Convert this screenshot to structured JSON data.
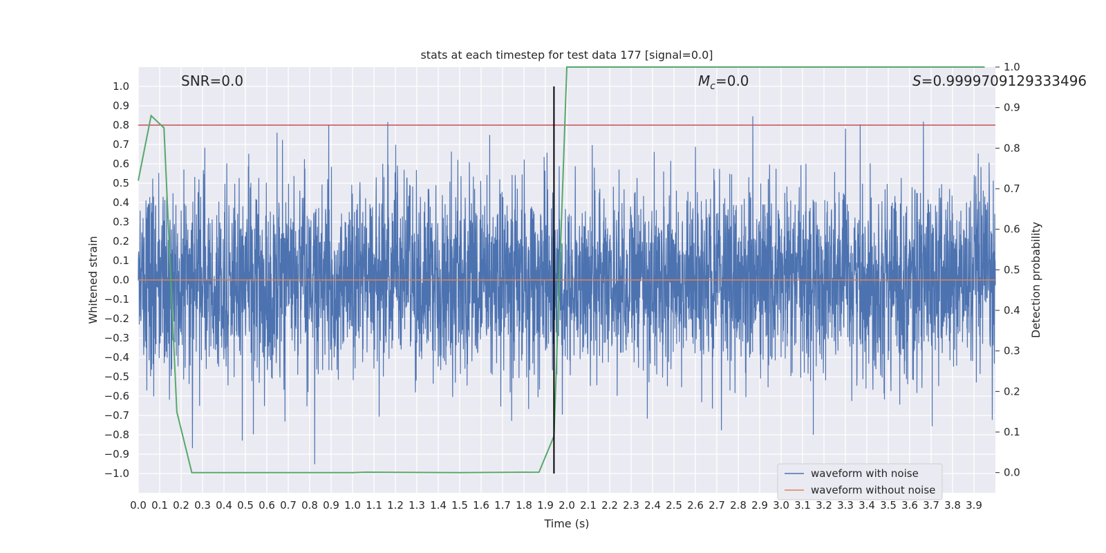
{
  "chart_data": {
    "type": "line",
    "title": "stats at each timestep for test data 177 [signal=0.0]",
    "xlabel": "Time (s)",
    "ylabel": "Whitened strain",
    "y2label": "Detection probability",
    "xlim": [
      0.0,
      4.0
    ],
    "ylim": [
      -1.1,
      1.1
    ],
    "y2lim": [
      -0.05,
      1.0
    ],
    "x_ticks": [
      0.0,
      0.1,
      0.2,
      0.3,
      0.4,
      0.5,
      0.6,
      0.7,
      0.8,
      0.9,
      1.0,
      1.1,
      1.2,
      1.3,
      1.4,
      1.5,
      1.6,
      1.7,
      1.8,
      1.9,
      2.0,
      2.1,
      2.2,
      2.3,
      2.4,
      2.5,
      2.6,
      2.7,
      2.8,
      2.9,
      3.0,
      3.1,
      3.2,
      3.3,
      3.4,
      3.5,
      3.6,
      3.7,
      3.8,
      3.9
    ],
    "y_ticks": [
      -1.0,
      -0.9,
      -0.8,
      -0.7,
      -0.6,
      -0.5,
      -0.4,
      -0.3,
      -0.2,
      -0.1,
      0.0,
      0.1,
      0.2,
      0.3,
      0.4,
      0.5,
      0.6,
      0.7,
      0.8,
      0.9,
      1.0
    ],
    "y2_ticks": [
      0.0,
      0.1,
      0.2,
      0.3,
      0.4,
      0.5,
      0.6,
      0.7,
      0.8,
      0.9,
      1.0
    ],
    "annotations": {
      "snr": "SNR=0.0",
      "mc_symbol": "M",
      "mc_sub": "c",
      "mc_value": "=0.0",
      "s_symbol": "S",
      "s_value": "=0.9999709129333496"
    },
    "threshold": {
      "value": 0.8,
      "color": "#c44e52"
    },
    "vline": {
      "x": 1.94,
      "color": "#000000"
    },
    "noise_series": {
      "name": "waveform with noise",
      "color": "#4c72b0",
      "samples": 4096,
      "range": [
        -0.95,
        0.93
      ]
    },
    "clean_series": {
      "name": "waveform without noise",
      "color": "#dd8452",
      "value": 0.0
    },
    "probability_series": {
      "name": "Detection probability",
      "color": "#55a868",
      "x": [
        0.0,
        0.03,
        0.06,
        0.12,
        0.18,
        0.25,
        0.5,
        1.0,
        1.06,
        1.5,
        1.87,
        1.94,
        2.0,
        3.95
      ],
      "y": [
        0.72,
        0.8,
        0.88,
        0.85,
        0.15,
        0.0,
        0.0,
        0.0,
        0.001,
        0.0,
        0.001,
        0.09,
        1.0,
        1.0
      ]
    },
    "legend": {
      "placement": "lower-right",
      "entries": [
        "waveform with noise",
        "waveform without noise"
      ]
    }
  }
}
